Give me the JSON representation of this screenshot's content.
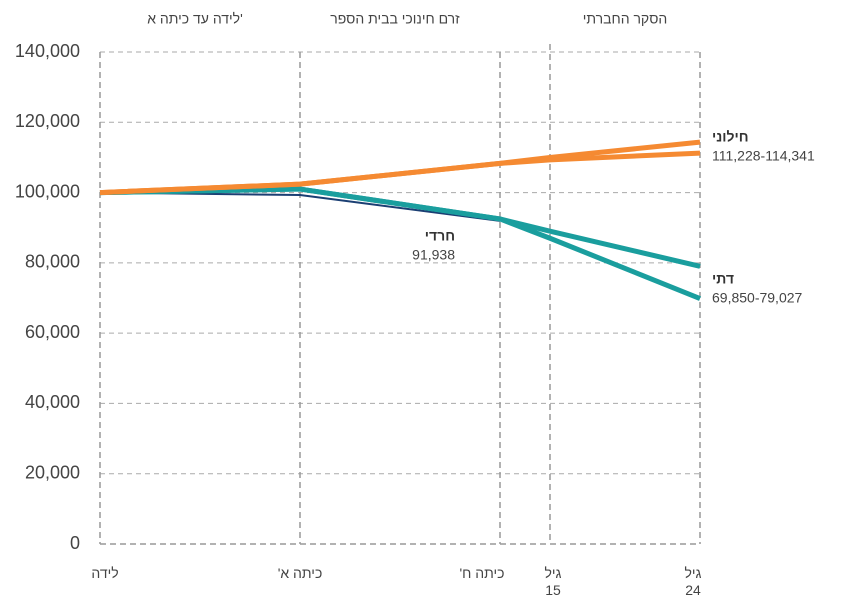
{
  "chart_data": {
    "type": "line",
    "sections": [
      "לידה עד כיתה א'",
      "זרם חינוכי בבית הספר",
      "הסקר החברתי"
    ],
    "categories": [
      "לידה",
      "כיתה א'",
      "כיתה ח'",
      "גיל 15",
      "גיל 24"
    ],
    "series": [
      {
        "color": "#1b3f73",
        "width": 2,
        "values": [
          100000,
          99300,
          91938,
          null,
          null
        ]
      },
      {
        "color": "#1a9e9e",
        "width": 5,
        "values": [
          100000,
          101000,
          92500,
          89000,
          79027
        ]
      },
      {
        "color": "#1a9e9e",
        "width": 5,
        "values": [
          100000,
          101000,
          92500,
          87000,
          69850
        ]
      },
      {
        "color": "#f58a32",
        "width": 5,
        "values": [
          100000,
          102400,
          108300,
          109300,
          111228
        ]
      },
      {
        "color": "#f58a32",
        "width": 5,
        "values": [
          100000,
          102400,
          108300,
          110000,
          114341
        ]
      }
    ],
    "annotations": [
      {
        "text": "חילוני",
        "value_label": "111,228-114,341"
      },
      {
        "text": "חרדי",
        "value_label": "91,938"
      },
      {
        "text": "דתי",
        "value_label": "69,850-79,027"
      }
    ],
    "ylim": [
      0,
      140000
    ],
    "yticks": [
      0,
      {
        "value": 20000,
        "label": "20,000"
      },
      {
        "value": 40000,
        "label": "40,000"
      },
      {
        "value": 60000,
        "label": "60,000"
      },
      {
        "value": 80000,
        "label": "80,000"
      },
      {
        "value": 100000,
        "label": "100,000"
      },
      {
        "value": 120000,
        "label": "120,000"
      },
      {
        "value": 140000,
        "label": "140,000"
      }
    ],
    "grid": true
  }
}
